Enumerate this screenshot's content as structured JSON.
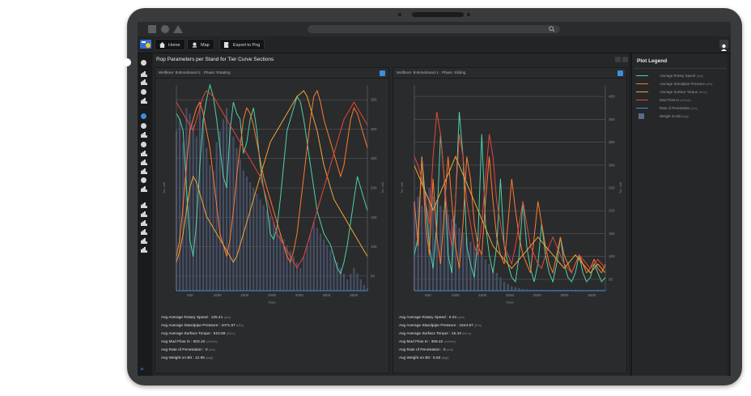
{
  "toolbar": {
    "buttons": [
      {
        "label": "Home",
        "icon": "home-icon"
      },
      {
        "label": "Map",
        "icon": "map-icon"
      },
      {
        "label": "Export to Png",
        "icon": "export-icon"
      }
    ]
  },
  "main": {
    "title": "Rop Parameters per Stand for Tier Curve Sections"
  },
  "panels": [
    {
      "title": "Wellbore: B-Bonebrand-1 · Phase: Rotating",
      "stats": [
        {
          "label": "Avg Average Rotary Speed : 125.41",
          "unit": "(rpm)"
        },
        {
          "label": "Avg Average Standpipe Pressure : 1071.67",
          "unit": "(kPa)"
        },
        {
          "label": "Avg Average Surface Torque : 510.58",
          "unit": "(kN.m)"
        },
        {
          "label": "Avg Mud Flow In : 503.10",
          "unit": "(m3/min)"
        },
        {
          "label": "Avg Rate of Penetration : 0",
          "unit": "(m/h)"
        },
        {
          "label": "Avg Weight on Bit : 12.95",
          "unit": "(kkgf)"
        }
      ],
      "chart_data": {
        "type": "line",
        "xlabel": "Time",
        "ylabel_left": "Tar. unit",
        "ylabel_right": "Tar. unit",
        "x_ticks": [
          "500",
          "1000",
          "1500",
          "2000",
          "2500",
          "3000",
          "3500"
        ],
        "y_ticks_right": [
          "350",
          "300",
          "250",
          "200",
          "150",
          "100",
          "50"
        ],
        "series": [
          {
            "color": "#4fd1a5",
            "values": [
              310,
              300,
              280,
              180,
              90,
              60,
              120,
              220,
              300,
              335,
              360,
              340,
              300,
              250,
              200,
              180,
              280,
              330,
              310,
              300,
              240,
              260,
              300,
              320,
              280,
              220,
              180,
              150,
              100,
              90,
              110,
              160,
              220,
              280,
              300,
              320,
              340,
              330,
              300,
              260,
              220,
              180,
              140,
              120,
              100,
              90,
              80,
              60,
              40,
              30,
              50,
              80,
              120,
              160,
              200,
              180,
              160,
              140
            ]
          },
          {
            "color": "#ff7a2f",
            "values": [
              60,
              90,
              150,
              220,
              280,
              300,
              320,
              330,
              310,
              280,
              250,
              200,
              150,
              100,
              80,
              60,
              90,
              140,
              200,
              250,
              300,
              320,
              310,
              290,
              260,
              230,
              200,
              180,
              160,
              140,
              120,
              100,
              80,
              60,
              50,
              70,
              100,
              150,
              200,
              250,
              300,
              340,
              350,
              330,
              300,
              280,
              260,
              240,
              220,
              200,
              220,
              260,
              300,
              320,
              310,
              290,
              270,
              250
            ]
          },
          {
            "color": "#f0a830",
            "values": [
              50,
              70,
              100,
              140,
              180,
              200,
              190,
              170,
              150,
              130,
              120,
              110,
              100,
              90,
              80,
              70,
              60,
              50,
              60,
              80,
              100,
              120,
              140,
              160,
              180,
              200,
              220,
              240,
              260,
              270,
              280,
              290,
              300,
              310,
              320,
              330,
              340,
              345,
              350,
              340,
              320,
              300,
              280,
              250,
              220,
              200,
              180,
              160,
              150,
              140,
              130,
              120,
              110,
              100,
              90,
              80,
              70,
              60
            ]
          },
          {
            "color": "#e8453c",
            "values": [
              330,
              320,
              310,
              300,
              290,
              280,
              300,
              320,
              340,
              350,
              345,
              340,
              330,
              320,
              310,
              300,
              290,
              280,
              270,
              260,
              250,
              240,
              230,
              220,
              210,
              200,
              180,
              160,
              140,
              120,
              100,
              90,
              80,
              70,
              60,
              50,
              40,
              50,
              60,
              80,
              100,
              120,
              140,
              160,
              180,
              200,
              220,
              240,
              260,
              280,
              300,
              310,
              320,
              330,
              320,
              310,
              300,
              290
            ]
          }
        ],
        "bars": [
          280,
          300,
          260,
          320,
          310,
          290,
          270,
          330,
          300,
          250,
          220,
          210,
          260,
          280,
          300,
          320,
          290,
          270,
          250,
          230,
          210,
          200,
          190,
          180,
          170,
          160,
          150,
          140,
          130,
          120,
          110,
          100,
          90,
          80,
          70,
          60,
          50,
          40,
          60,
          80,
          100,
          120,
          110,
          100,
          90,
          80,
          70,
          60,
          50,
          40,
          30,
          20,
          30,
          40,
          30,
          20,
          10,
          5
        ],
        "xlim": [
          0,
          57
        ],
        "ylim": [
          0,
          360
        ]
      }
    },
    {
      "title": "Wellbore: B-Bonebrand-1 · Phase: Sliding",
      "stats": [
        {
          "label": "Avg Average Rotary Speed : 0.34",
          "unit": "(rpm)"
        },
        {
          "label": "Avg Average Standpipe Pressure : 1644.57",
          "unit": "(kPa)"
        },
        {
          "label": "Avg Average Surface Torque : 15.43",
          "unit": "(kN.m)"
        },
        {
          "label": "Avg Mud Flow In : 359.42",
          "unit": "(m3/min)"
        },
        {
          "label": "Avg Rate of Penetration : 0",
          "unit": "(m/h)"
        },
        {
          "label": "Avg Weight on Bit : 5.63",
          "unit": "(kkgf)"
        }
      ],
      "chart_data": {
        "type": "line",
        "xlabel": "Time",
        "ylabel_left": "Tar. unit",
        "ylabel_right": "Tar. unit",
        "x_ticks": [
          "500",
          "1000",
          "1500",
          "2000",
          "2500",
          "3000",
          "3500"
        ],
        "y_ticks_right": [
          "450",
          "400",
          "350",
          "300",
          "250",
          "200",
          "150",
          "100",
          "50"
        ],
        "series": [
          {
            "color": "#4fd1a5",
            "values": [
              80,
              120,
              300,
              200,
              100,
              50,
              150,
              350,
              250,
              80,
              40,
              200,
              400,
              300,
              100,
              60,
              30,
              120,
              350,
              150,
              80,
              40,
              100,
              250,
              100,
              60,
              30,
              20,
              80,
              200,
              100,
              50,
              20,
              60,
              150,
              80,
              40,
              20,
              60,
              120,
              60,
              30,
              20,
              40,
              80,
              40,
              20,
              30,
              60,
              40,
              20,
              30
            ]
          },
          {
            "color": "#ff7a2f",
            "values": [
              200,
              100,
              300,
              150,
              80,
              250,
              120,
              60,
              180,
              300,
              200,
              100,
              50,
              150,
              300,
              250,
              150,
              100,
              80,
              200,
              300,
              200,
              120,
              80,
              60,
              150,
              250,
              180,
              120,
              80,
              60,
              40,
              120,
              200,
              150,
              100,
              60,
              40,
              80,
              120,
              80,
              60,
              40,
              60,
              80,
              60,
              40,
              50,
              70,
              50,
              40,
              60
            ]
          },
          {
            "color": "#e8453c",
            "values": [
              300,
              280,
              250,
              200,
              150,
              300,
              400,
              350,
              250,
              150,
              100,
              200,
              350,
              300,
              200,
              150,
              100,
              80,
              150,
              250,
              350,
              300,
              200,
              150,
              100,
              80,
              60,
              100,
              150,
              200,
              150,
              100,
              80,
              60,
              50,
              80,
              100,
              120,
              100,
              80,
              60,
              50,
              40,
              60,
              80,
              70,
              60,
              50,
              60,
              70,
              60,
              50
            ]
          },
          {
            "color": "#f0a830",
            "values": [
              280,
              260,
              240,
              220,
              200,
              180,
              200,
              220,
              240,
              260,
              280,
              300,
              280,
              260,
              240,
              220,
              200,
              180,
              160,
              140,
              120,
              100,
              90,
              80,
              70,
              60,
              50,
              60,
              70,
              80,
              90,
              100,
              110,
              120,
              110,
              100,
              90,
              80,
              70,
              60,
              50,
              60,
              70,
              80,
              70,
              60,
              50,
              40,
              50,
              60,
              50,
              40
            ]
          }
        ],
        "bars": [
          200,
          210,
          190,
          220,
          230,
          210,
          200,
          190,
          180,
          170,
          160,
          150,
          140,
          130,
          120,
          110,
          100,
          90,
          80,
          70,
          60,
          50,
          40,
          30,
          20,
          15,
          10,
          8,
          6,
          4,
          3,
          2,
          2,
          2,
          2,
          2,
          2,
          2,
          2,
          2,
          2,
          2,
          2,
          2,
          2,
          2,
          2,
          2,
          2,
          2,
          2,
          2
        ],
        "xlim": [
          0,
          51
        ],
        "ylim": [
          0,
          460
        ]
      }
    }
  ],
  "legend": {
    "title": "Plot Legend",
    "items": [
      {
        "label": "Average Rotary Speed",
        "unit": "(rpm)",
        "color": "#4fd1a5",
        "kind": "line"
      },
      {
        "label": "Average Standpipe Pressure",
        "unit": "(kPa)",
        "color": "#ff7a2f",
        "kind": "line"
      },
      {
        "label": "Average Surface Torque",
        "unit": "(kN.m)",
        "color": "#f0a830",
        "kind": "line"
      },
      {
        "label": "Mud Flow In",
        "unit": "(m3/min)",
        "color": "#e8453c",
        "kind": "line"
      },
      {
        "label": "Rate of Penetration",
        "unit": "(m/h)",
        "color": "#3b8fdc",
        "kind": "line"
      },
      {
        "label": "Weight on Bit",
        "unit": "(kkgf)",
        "color": "#5a6a8a",
        "kind": "box"
      }
    ]
  }
}
